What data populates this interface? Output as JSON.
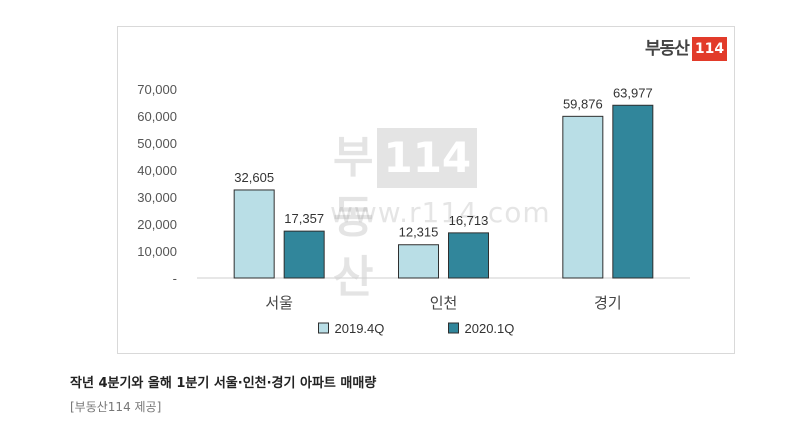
{
  "logo": {
    "text": "부동산",
    "number": "114"
  },
  "watermark": {
    "text": "부동산",
    "number": "114",
    "url": "www.r114.com"
  },
  "chart_data": {
    "type": "bar",
    "categories": [
      "서울",
      "인천",
      "경기"
    ],
    "series": [
      {
        "name": "2019.4Q",
        "values": [
          32605,
          12315,
          59876
        ],
        "labels": [
          "32,605",
          "12,315",
          "59,876"
        ],
        "color": "#b9dee6"
      },
      {
        "name": "2020.1Q",
        "values": [
          17357,
          16713,
          63977
        ],
        "labels": [
          "17,357",
          "16,713",
          "63,977"
        ],
        "color": "#31869b"
      }
    ],
    "ylim": [
      0,
      70000
    ],
    "yticks": [
      "-",
      "10,000",
      "20,000",
      "30,000",
      "40,000",
      "50,000",
      "60,000",
      "70,000"
    ],
    "grid": false,
    "legend_position": "bottom"
  },
  "caption": "작년 4분기와 올해 1분기 서울·인천·경기 아파트 매매량",
  "source": "[부동산114 제공]"
}
